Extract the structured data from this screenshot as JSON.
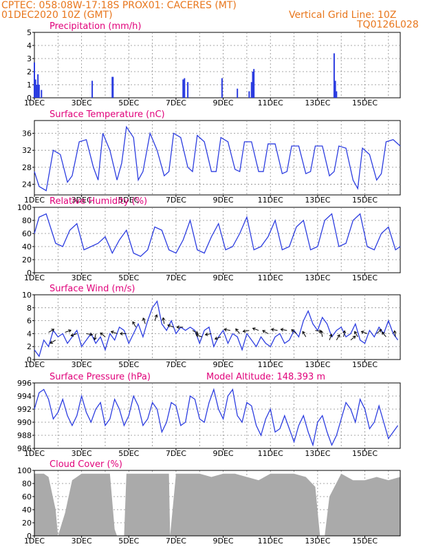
{
  "header": {
    "line1": "CPTEC:   058:08W-17:18S   PROX01: CACERES (MT)",
    "line2_left": "01DEC2020 10Z (GMT)",
    "line2_right": "Vertical Grid Line: 10Z",
    "line3_right": "TQ0126L028"
  },
  "colors": {
    "series": "#2b3ce0",
    "title": "#e0007a",
    "header": "#e8761c",
    "cloud": "#aaaaaa"
  },
  "x_axis": {
    "labels": [
      "1DEC",
      "3DEC",
      "5DEC",
      "7DEC",
      "9DEC",
      "11DEC",
      "13DEC",
      "15DEC"
    ],
    "label_days": [
      1,
      3,
      5,
      7,
      9,
      11,
      13,
      15
    ],
    "range_days": [
      1,
      16.5
    ]
  },
  "chart_data": [
    {
      "type": "bar",
      "title": "Precipitation (mm/h)",
      "ylim": [
        0,
        5
      ],
      "yticks": [
        "0",
        "1",
        "2",
        "3",
        "4",
        "5"
      ],
      "bars": [
        [
          1.0,
          2.7
        ],
        [
          1.05,
          1.4
        ],
        [
          1.1,
          1.0
        ],
        [
          1.15,
          1.8
        ],
        [
          1.2,
          1.0
        ],
        [
          1.3,
          0.6
        ],
        [
          3.45,
          1.3
        ],
        [
          4.3,
          1.6
        ],
        [
          4.33,
          1.6
        ],
        [
          7.3,
          1.4
        ],
        [
          7.33,
          1.4
        ],
        [
          7.36,
          1.5
        ],
        [
          7.5,
          1.2
        ],
        [
          8.95,
          1.5
        ],
        [
          9.6,
          0.7
        ],
        [
          10.1,
          0.5
        ],
        [
          10.2,
          1.2
        ],
        [
          10.25,
          2.0
        ],
        [
          10.3,
          2.2
        ],
        [
          13.7,
          3.4
        ],
        [
          13.75,
          1.3
        ],
        [
          13.8,
          0.5
        ]
      ]
    },
    {
      "type": "line",
      "title": "Surface Temperature (nC)",
      "ylim": [
        21.5,
        39
      ],
      "yticks": [
        "24",
        "28",
        "32",
        "36"
      ],
      "x": [
        1.0,
        1.2,
        1.5,
        1.8,
        2.1,
        2.4,
        2.6,
        2.9,
        3.2,
        3.5,
        3.7,
        3.9,
        4.2,
        4.5,
        4.7,
        4.9,
        5.2,
        5.4,
        5.6,
        5.9,
        6.2,
        6.5,
        6.7,
        6.9,
        7.2,
        7.5,
        7.7,
        7.9,
        8.2,
        8.5,
        8.7,
        8.9,
        9.2,
        9.5,
        9.7,
        9.9,
        10.2,
        10.5,
        10.7,
        10.9,
        11.2,
        11.5,
        11.7,
        11.9,
        12.2,
        12.5,
        12.7,
        12.9,
        13.2,
        13.5,
        13.7,
        13.9,
        14.2,
        14.5,
        14.7,
        14.9,
        15.2,
        15.5,
        15.7,
        15.9,
        16.2,
        16.5
      ],
      "y": [
        27,
        23.5,
        22.5,
        32,
        31,
        24.5,
        26,
        34,
        34.5,
        28,
        25,
        36,
        32,
        25,
        29,
        37.5,
        35,
        25,
        27,
        36,
        32,
        26,
        27,
        36,
        35,
        28,
        27,
        35.5,
        34,
        27,
        27,
        35,
        34,
        27.5,
        27,
        34,
        34,
        27,
        27,
        33.5,
        33.5,
        26.5,
        27,
        33,
        33,
        26.5,
        27,
        33,
        33,
        26,
        27,
        33,
        32.5,
        25,
        23,
        32.5,
        31,
        25,
        26.5,
        34,
        34.5,
        33
      ]
    },
    {
      "type": "line",
      "title": "Relative Humidity (%)",
      "ylim": [
        0,
        100
      ],
      "yticks": [
        "0",
        "20",
        "40",
        "60",
        "80",
        "100"
      ],
      "x": [
        1.0,
        1.2,
        1.5,
        1.9,
        2.2,
        2.5,
        2.8,
        3.1,
        3.4,
        3.7,
        4.0,
        4.3,
        4.6,
        4.9,
        5.2,
        5.5,
        5.8,
        6.1,
        6.4,
        6.7,
        7.0,
        7.3,
        7.6,
        7.9,
        8.2,
        8.5,
        8.8,
        9.1,
        9.4,
        9.7,
        10.0,
        10.3,
        10.6,
        10.9,
        11.2,
        11.5,
        11.8,
        12.1,
        12.4,
        12.7,
        13.0,
        13.3,
        13.6,
        13.9,
        14.2,
        14.5,
        14.8,
        15.1,
        15.4,
        15.7,
        16.0,
        16.3,
        16.5
      ],
      "y": [
        60,
        85,
        90,
        45,
        40,
        65,
        75,
        35,
        40,
        45,
        55,
        30,
        50,
        65,
        30,
        25,
        35,
        70,
        65,
        35,
        30,
        50,
        80,
        35,
        30,
        55,
        75,
        35,
        40,
        60,
        85,
        35,
        40,
        55,
        80,
        35,
        40,
        70,
        80,
        35,
        40,
        80,
        90,
        40,
        45,
        80,
        90,
        40,
        35,
        60,
        70,
        35,
        40
      ]
    },
    {
      "type": "line",
      "title": "Surface Wind (m/s)",
      "ylim": [
        0,
        10
      ],
      "yticks": [
        "0",
        "2",
        "4",
        "6",
        "8",
        "10"
      ],
      "x": [
        1.0,
        1.2,
        1.4,
        1.6,
        1.8,
        2.0,
        2.2,
        2.4,
        2.6,
        2.8,
        3.0,
        3.2,
        3.4,
        3.6,
        3.8,
        4.0,
        4.2,
        4.4,
        4.6,
        4.8,
        5.0,
        5.2,
        5.4,
        5.6,
        5.8,
        6.0,
        6.2,
        6.4,
        6.6,
        6.8,
        7.0,
        7.2,
        7.4,
        7.6,
        7.8,
        8.0,
        8.2,
        8.4,
        8.6,
        8.8,
        9.0,
        9.2,
        9.4,
        9.6,
        9.8,
        10.0,
        10.2,
        10.4,
        10.6,
        10.8,
        11.0,
        11.2,
        11.4,
        11.6,
        11.8,
        12.0,
        12.2,
        12.4,
        12.6,
        12.8,
        13.0,
        13.2,
        13.4,
        13.6,
        13.8,
        14.0,
        14.2,
        14.4,
        14.6,
        14.8,
        15.0,
        15.2,
        15.4,
        15.6,
        15.8,
        16.0,
        16.2,
        16.4
      ],
      "y": [
        1.5,
        0.5,
        3.0,
        2.0,
        4.5,
        3.5,
        4.0,
        2.5,
        3.5,
        4.5,
        2.0,
        3.0,
        4.0,
        2.5,
        3.5,
        1.5,
        4.0,
        3.0,
        5.0,
        4.5,
        2.5,
        4.0,
        5.5,
        3.5,
        6.0,
        8.0,
        9.0,
        5.5,
        4.5,
        6.0,
        4.0,
        5.0,
        4.5,
        5.0,
        4.5,
        2.5,
        4.5,
        5.0,
        2.0,
        3.5,
        4.5,
        2.5,
        4.0,
        3.5,
        1.5,
        4.0,
        3.0,
        2.0,
        3.5,
        2.5,
        2.0,
        3.5,
        4.0,
        2.5,
        3.0,
        4.5,
        3.5,
        6.0,
        7.5,
        5.5,
        4.5,
        6.5,
        5.5,
        3.5,
        4.5,
        5.0,
        3.5,
        4.0,
        5.5,
        3.0,
        2.5,
        4.5,
        3.5,
        5.0,
        4.0,
        6.0,
        4.0,
        3.0
      ],
      "arrows": [
        [
          1.6,
          4.2,
          -30
        ],
        [
          1.9,
          3.0,
          150
        ],
        [
          2.3,
          4.2,
          -20
        ],
        [
          2.8,
          4.0,
          160
        ],
        [
          3.2,
          4.0,
          10
        ],
        [
          3.6,
          4.0,
          100
        ],
        [
          4.0,
          3.5,
          220
        ],
        [
          4.5,
          4.0,
          200
        ],
        [
          4.9,
          4.0,
          180
        ],
        [
          5.3,
          5.0,
          240
        ],
        [
          5.7,
          5.5,
          250
        ],
        [
          6.1,
          6.0,
          290
        ],
        [
          6.5,
          5.5,
          260
        ],
        [
          6.9,
          5.0,
          200
        ],
        [
          7.3,
          5.0,
          180
        ],
        [
          7.7,
          4.5,
          30
        ],
        [
          8.1,
          3.5,
          200
        ],
        [
          8.5,
          4.0,
          170
        ],
        [
          8.9,
          3.5,
          160
        ],
        [
          9.3,
          4.5,
          190
        ],
        [
          9.7,
          4.0,
          230
        ],
        [
          10.1,
          4.5,
          170
        ],
        [
          10.5,
          4.5,
          200
        ],
        [
          10.9,
          4.0,
          210
        ],
        [
          11.3,
          4.5,
          190
        ],
        [
          11.7,
          4.5,
          190
        ],
        [
          12.1,
          4.0,
          220
        ],
        [
          12.5,
          3.5,
          240
        ],
        [
          12.9,
          4.5,
          10
        ],
        [
          13.2,
          3.5,
          260
        ],
        [
          13.5,
          3.0,
          290
        ],
        [
          13.8,
          3.0,
          300
        ],
        [
          14.1,
          3.5,
          280
        ],
        [
          14.4,
          3.0,
          320
        ],
        [
          14.7,
          3.5,
          240
        ],
        [
          15.1,
          4.0,
          200
        ],
        [
          15.5,
          4.0,
          320
        ],
        [
          15.9,
          3.5,
          230
        ],
        [
          16.3,
          3.5,
          260
        ]
      ]
    },
    {
      "type": "line",
      "title": "Surface Pressure (hPa)",
      "annotation": "Model Altitude: 148.393 m",
      "ylim": [
        986,
        996
      ],
      "yticks": [
        "986",
        "988",
        "990",
        "992",
        "994",
        "996"
      ],
      "x": [
        1.0,
        1.2,
        1.4,
        1.6,
        1.8,
        2.0,
        2.2,
        2.4,
        2.6,
        2.8,
        3.0,
        3.2,
        3.4,
        3.6,
        3.8,
        4.0,
        4.2,
        4.4,
        4.6,
        4.8,
        5.0,
        5.2,
        5.4,
        5.6,
        5.8,
        6.0,
        6.2,
        6.4,
        6.6,
        6.8,
        7.0,
        7.2,
        7.4,
        7.6,
        7.8,
        8.0,
        8.2,
        8.4,
        8.6,
        8.8,
        9.0,
        9.2,
        9.4,
        9.6,
        9.8,
        10.0,
        10.2,
        10.4,
        10.6,
        10.8,
        11.0,
        11.2,
        11.4,
        11.6,
        11.8,
        12.0,
        12.2,
        12.4,
        12.6,
        12.8,
        13.0,
        13.2,
        13.4,
        13.6,
        13.8,
        14.0,
        14.2,
        14.4,
        14.6,
        14.8,
        15.0,
        15.2,
        15.4,
        15.6,
        15.8,
        16.0,
        16.2,
        16.4
      ],
      "y": [
        992.0,
        994.5,
        995.0,
        993.5,
        990.5,
        991.5,
        993.5,
        991.0,
        989.5,
        991.0,
        994.0,
        991.5,
        990.0,
        992.0,
        993.0,
        989.5,
        990.5,
        993.5,
        992.0,
        989.5,
        991.0,
        994.0,
        992.5,
        989.5,
        990.5,
        993.0,
        992.0,
        988.5,
        990.0,
        993.0,
        992.5,
        989.5,
        990.0,
        994.0,
        993.5,
        990.5,
        990.0,
        993.0,
        995.0,
        992.0,
        990.5,
        994.0,
        995.0,
        991.0,
        990.0,
        993.0,
        992.5,
        989.5,
        988.0,
        990.5,
        992.0,
        988.5,
        989.0,
        991.0,
        989.0,
        987.0,
        989.5,
        991.0,
        988.5,
        986.5,
        990.0,
        991.0,
        988.5,
        986.5,
        988.0,
        990.5,
        993.0,
        992.0,
        990.0,
        993.5,
        992.0,
        989.0,
        990.0,
        992.5,
        990.0,
        987.5,
        988.5,
        989.5
      ]
    },
    {
      "type": "area",
      "title": "Cloud Cover (%)",
      "ylim": [
        0,
        100
      ],
      "yticks": [
        "0",
        "20",
        "40",
        "60",
        "80",
        "100"
      ],
      "x": [
        1.0,
        1.4,
        1.6,
        1.9,
        2.0,
        2.3,
        2.6,
        3.0,
        3.4,
        3.8,
        4.2,
        4.4,
        4.5,
        4.8,
        4.9,
        5.2,
        5.6,
        6.0,
        6.4,
        6.7,
        6.75,
        7.0,
        7.5,
        8.0,
        8.5,
        9.0,
        9.5,
        10.0,
        10.5,
        11.0,
        11.5,
        12.0,
        12.5,
        12.9,
        13.1,
        13.3,
        13.5,
        14.0,
        14.5,
        15.0,
        15.5,
        16.0,
        16.5
      ],
      "y": [
        95,
        95,
        90,
        40,
        0,
        35,
        85,
        95,
        95,
        95,
        95,
        10,
        0,
        0,
        95,
        95,
        95,
        95,
        95,
        95,
        0,
        95,
        95,
        95,
        90,
        95,
        95,
        90,
        85,
        95,
        95,
        95,
        90,
        75,
        0,
        0,
        60,
        95,
        85,
        85,
        90,
        85,
        90
      ]
    }
  ]
}
